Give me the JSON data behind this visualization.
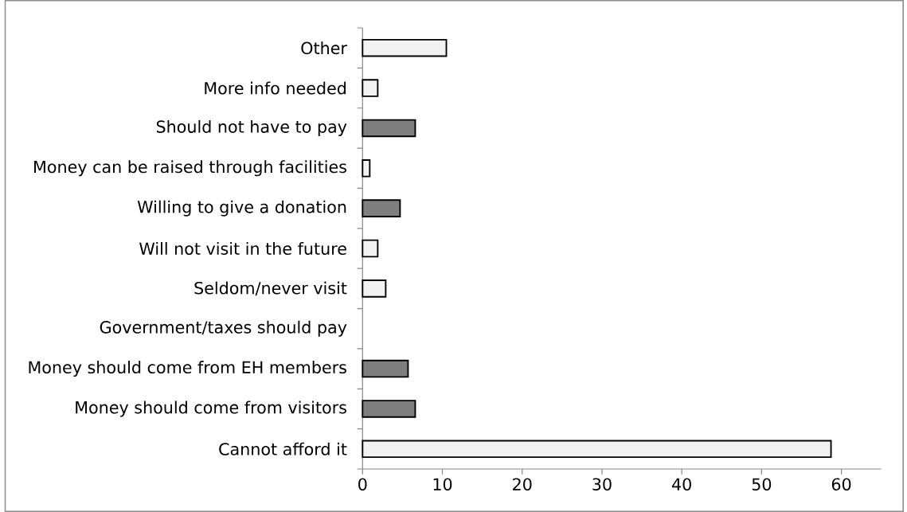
{
  "chart_data": {
    "type": "bar",
    "orientation": "horizontal",
    "categories": [
      "Other",
      "More info needed",
      "Should not have to pay",
      "Money can be raised through facilities",
      "Willing to give a donation",
      "Will not visit in the future",
      "Seldom/never visit",
      "Government/taxes should pay",
      "Money should come from EH members",
      "Money should come from visitors",
      "Cannot afford it"
    ],
    "values": [
      10.5,
      1.9,
      6.6,
      0.9,
      4.7,
      1.9,
      2.9,
      0,
      5.7,
      6.6,
      58.7
    ],
    "colors": [
      "#f2f2f2",
      "#f2f2f2",
      "#7f7f7f",
      "#f2f2f2",
      "#7f7f7f",
      "#f2f2f2",
      "#f2f2f2",
      "#f2f2f2",
      "#7f7f7f",
      "#7f7f7f",
      "#f2f2f2"
    ],
    "xlim": [
      0,
      65
    ],
    "xticks": [
      0,
      10,
      20,
      30,
      40,
      50,
      60
    ]
  }
}
